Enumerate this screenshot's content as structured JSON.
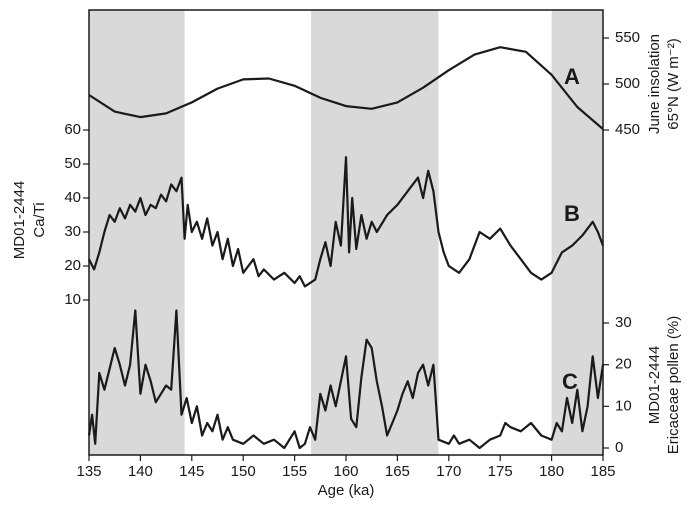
{
  "chart_data": [
    {
      "type": "line",
      "panel_label": "A",
      "ylabel": [
        "June insolation",
        "65°N (W m⁻²)"
      ],
      "axis_side": "right",
      "ylim": [
        450,
        550
      ],
      "yticks": [
        450,
        500,
        550
      ],
      "color": "#1a1a1a",
      "x": [
        135,
        137.5,
        140,
        142.5,
        145,
        147.5,
        150,
        152.5,
        155,
        157.5,
        160,
        162.5,
        165,
        167.5,
        170,
        172.5,
        175,
        177.5,
        180,
        182.5,
        185
      ],
      "values": [
        488,
        470,
        464,
        468,
        480,
        495,
        505,
        506,
        498,
        485,
        476,
        473,
        480,
        496,
        515,
        532,
        540,
        535,
        510,
        475,
        451
      ]
    },
    {
      "type": "line",
      "panel_label": "B",
      "ylabel": [
        "MD01-2444",
        "Ca/Ti"
      ],
      "axis_side": "left",
      "ylim": [
        10,
        60
      ],
      "yticks": [
        10,
        20,
        30,
        40,
        50,
        60
      ],
      "color": "#1a1a1a",
      "x": [
        135,
        135.5,
        136,
        136.5,
        137,
        137.5,
        138,
        138.5,
        139,
        139.5,
        140,
        140.5,
        141,
        141.5,
        142,
        142.5,
        143,
        143.5,
        144,
        144.3,
        144.6,
        145,
        145.5,
        146,
        146.5,
        147,
        147.5,
        148,
        148.5,
        149,
        149.5,
        150,
        151,
        151.5,
        152,
        153,
        154,
        155,
        155.5,
        156,
        157,
        157.5,
        158,
        158.5,
        159,
        159.5,
        160,
        160.3,
        160.6,
        161,
        161.5,
        162,
        162.5,
        163,
        164,
        165,
        166,
        167,
        167.5,
        168,
        168.5,
        169,
        169.5,
        170,
        171,
        172,
        173,
        174,
        175,
        176,
        177,
        178,
        179,
        180,
        181,
        182,
        183,
        184,
        184.5,
        185
      ],
      "values": [
        22,
        19,
        24,
        30,
        35,
        33,
        37,
        34,
        38,
        36,
        40,
        35,
        38,
        37,
        41,
        39,
        44,
        42,
        46,
        28,
        38,
        30,
        33,
        28,
        34,
        26,
        30,
        22,
        28,
        20,
        25,
        18,
        22,
        17,
        19,
        16,
        18,
        15,
        17,
        14,
        16,
        22,
        27,
        20,
        33,
        26,
        52,
        24,
        40,
        25,
        35,
        28,
        33,
        30,
        35,
        38,
        42,
        46,
        40,
        48,
        42,
        30,
        24,
        20,
        18,
        22,
        30,
        28,
        31,
        26,
        22,
        18,
        16,
        18,
        24,
        26,
        29,
        33,
        30,
        26
      ]
    },
    {
      "type": "line",
      "panel_label": "C",
      "ylabel": [
        "MD01-2444",
        "Ericaceae pollen (%)"
      ],
      "axis_side": "right",
      "ylim": [
        0,
        30
      ],
      "yticks": [
        0,
        10,
        20,
        30
      ],
      "color": "#1a1a1a",
      "xlabel": "Age (ka)",
      "xlim": [
        135,
        185
      ],
      "xticks": [
        135,
        140,
        145,
        150,
        155,
        160,
        165,
        170,
        175,
        180,
        185
      ],
      "shading": [
        [
          135,
          144.3
        ],
        [
          156.6,
          169
        ],
        [
          180,
          185
        ]
      ],
      "shading_color": "#d9d9d9",
      "x": [
        135,
        135.3,
        135.6,
        136,
        136.5,
        137,
        137.5,
        138,
        138.5,
        139,
        139.5,
        140,
        140.5,
        141,
        141.5,
        142,
        142.5,
        143,
        143.5,
        144,
        144.5,
        145,
        145.5,
        146,
        146.5,
        147,
        147.5,
        148,
        148.5,
        149,
        150,
        151,
        152,
        153,
        154,
        155,
        155.5,
        156,
        156.5,
        157,
        157.5,
        158,
        158.5,
        159,
        160,
        160.5,
        161,
        161.5,
        162,
        162.5,
        163,
        163.5,
        164,
        164.5,
        165,
        165.5,
        166,
        166.5,
        167,
        167.5,
        168,
        168.5,
        169,
        170,
        170.5,
        171,
        172,
        173,
        174,
        175,
        175.5,
        176,
        177,
        178,
        179,
        180,
        180.5,
        181,
        181.5,
        182,
        182.5,
        183,
        183.5,
        184,
        184.5,
        185
      ],
      "values": [
        3,
        8,
        1,
        18,
        14,
        19,
        24,
        20,
        15,
        20,
        33,
        13,
        20,
        16,
        11,
        13,
        15,
        14,
        33,
        8,
        12,
        6,
        10,
        3,
        6,
        4,
        8,
        2,
        5,
        2,
        1,
        3,
        1,
        2,
        0,
        4,
        0,
        1,
        5,
        2,
        13,
        9,
        15,
        10,
        22,
        7,
        5,
        17,
        26,
        24,
        16,
        10,
        3,
        6,
        9,
        13,
        16,
        12,
        18,
        20,
        15,
        20,
        2,
        1,
        3,
        1,
        2,
        0,
        2,
        3,
        6,
        5,
        4,
        6,
        3,
        2,
        6,
        4,
        12,
        6,
        14,
        4,
        10,
        22,
        12,
        20
      ]
    }
  ]
}
